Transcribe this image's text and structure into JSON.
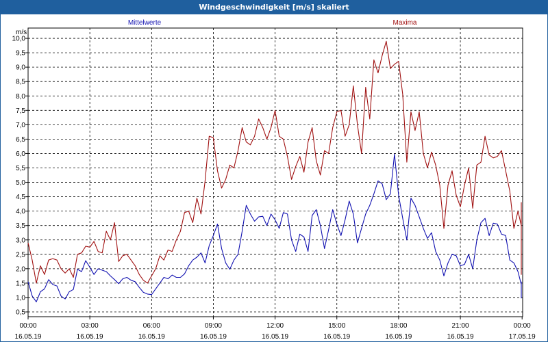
{
  "window": {
    "title": "Windgeschwindigkeit [m/s] skaliert"
  },
  "chart_data": {
    "type": "line",
    "unit_label": "m/s",
    "ylim": [
      0.3,
      10.3
    ],
    "y_ticks": [
      "0,5",
      "1,0",
      "1,5",
      "2,0",
      "2,5",
      "3,0",
      "3,5",
      "4,0",
      "4,5",
      "5,0",
      "5,5",
      "6,0",
      "6,5",
      "7,0",
      "7,5",
      "8,0",
      "8,5",
      "9,0",
      "9,5",
      "10,0"
    ],
    "y_tick_values": [
      0.5,
      1.0,
      1.5,
      2.0,
      2.5,
      3.0,
      3.5,
      4.0,
      4.5,
      5.0,
      5.5,
      6.0,
      6.5,
      7.0,
      7.5,
      8.0,
      8.5,
      9.0,
      9.5,
      10.0
    ],
    "x_ticks": [
      {
        "time": "00:00",
        "date": "16.05.19",
        "hour": 0
      },
      {
        "time": "03:00",
        "date": "16.05.19",
        "hour": 3
      },
      {
        "time": "06:00",
        "date": "16.05.19",
        "hour": 6
      },
      {
        "time": "09:00",
        "date": "16.05.19",
        "hour": 9
      },
      {
        "time": "12:00",
        "date": "16.05.19",
        "hour": 12
      },
      {
        "time": "15:00",
        "date": "16.05.19",
        "hour": 15
      },
      {
        "time": "18:00",
        "date": "16.05.19",
        "hour": 18
      },
      {
        "time": "21:00",
        "date": "16.05.19",
        "hour": 21
      },
      {
        "time": "00:00",
        "date": "17.05.19",
        "hour": 24
      }
    ],
    "xlim": [
      0,
      24
    ],
    "grid": true,
    "series": [
      {
        "name": "Mittelwerte",
        "color": "#1010b0",
        "points": [
          [
            0,
            1.55
          ],
          [
            0.2,
            1.05
          ],
          [
            0.4,
            0.85
          ],
          [
            0.6,
            1.2
          ],
          [
            0.8,
            1.3
          ],
          [
            1.0,
            1.62
          ],
          [
            1.2,
            1.45
          ],
          [
            1.4,
            1.4
          ],
          [
            1.6,
            1.05
          ],
          [
            1.8,
            0.95
          ],
          [
            2.0,
            1.2
          ],
          [
            2.2,
            1.28
          ],
          [
            2.4,
            1.98
          ],
          [
            2.6,
            1.9
          ],
          [
            2.8,
            2.28
          ],
          [
            3.0,
            2.05
          ],
          [
            3.2,
            1.8
          ],
          [
            3.4,
            2.0
          ],
          [
            3.6,
            1.95
          ],
          [
            3.8,
            1.9
          ],
          [
            4.0,
            1.75
          ],
          [
            4.2,
            1.62
          ],
          [
            4.4,
            1.48
          ],
          [
            4.6,
            1.65
          ],
          [
            4.8,
            1.7
          ],
          [
            5.0,
            1.6
          ],
          [
            5.2,
            1.55
          ],
          [
            5.4,
            1.35
          ],
          [
            5.6,
            1.18
          ],
          [
            5.8,
            1.12
          ],
          [
            6.0,
            1.1
          ],
          [
            6.2,
            1.3
          ],
          [
            6.4,
            1.5
          ],
          [
            6.6,
            1.7
          ],
          [
            6.8,
            1.65
          ],
          [
            7.0,
            1.78
          ],
          [
            7.2,
            1.7
          ],
          [
            7.4,
            1.7
          ],
          [
            7.6,
            1.82
          ],
          [
            7.8,
            2.1
          ],
          [
            8.0,
            2.3
          ],
          [
            8.2,
            2.4
          ],
          [
            8.4,
            2.55
          ],
          [
            8.6,
            2.2
          ],
          [
            8.8,
            2.8
          ],
          [
            9.0,
            3.15
          ],
          [
            9.2,
            3.55
          ],
          [
            9.4,
            2.7
          ],
          [
            9.6,
            2.2
          ],
          [
            9.8,
            1.98
          ],
          [
            10.0,
            2.3
          ],
          [
            10.2,
            2.5
          ],
          [
            10.4,
            3.3
          ],
          [
            10.6,
            4.2
          ],
          [
            10.8,
            3.9
          ],
          [
            11.0,
            3.65
          ],
          [
            11.2,
            3.8
          ],
          [
            11.4,
            3.82
          ],
          [
            11.6,
            3.5
          ],
          [
            11.8,
            3.9
          ],
          [
            12.0,
            3.7
          ],
          [
            12.2,
            3.4
          ],
          [
            12.4,
            3.95
          ],
          [
            12.6,
            3.9
          ],
          [
            12.8,
            3.0
          ],
          [
            13.0,
            2.6
          ],
          [
            13.2,
            3.2
          ],
          [
            13.4,
            3.1
          ],
          [
            13.6,
            2.6
          ],
          [
            13.8,
            3.85
          ],
          [
            14.0,
            4.05
          ],
          [
            14.2,
            3.5
          ],
          [
            14.4,
            2.7
          ],
          [
            14.6,
            3.35
          ],
          [
            14.8,
            4.05
          ],
          [
            15.0,
            3.55
          ],
          [
            15.2,
            3.15
          ],
          [
            15.4,
            3.7
          ],
          [
            15.6,
            4.35
          ],
          [
            15.8,
            3.9
          ],
          [
            16.0,
            2.9
          ],
          [
            16.2,
            3.4
          ],
          [
            16.4,
            3.9
          ],
          [
            16.6,
            4.2
          ],
          [
            16.8,
            4.6
          ],
          [
            17.0,
            5.05
          ],
          [
            17.2,
            4.95
          ],
          [
            17.4,
            4.4
          ],
          [
            17.6,
            4.6
          ],
          [
            17.8,
            5.98
          ],
          [
            18.0,
            4.55
          ],
          [
            18.2,
            3.75
          ],
          [
            18.4,
            3.0
          ],
          [
            18.6,
            4.45
          ],
          [
            18.8,
            4.2
          ],
          [
            19.0,
            3.8
          ],
          [
            19.2,
            3.4
          ],
          [
            19.4,
            3.05
          ],
          [
            19.6,
            3.25
          ],
          [
            19.8,
            2.6
          ],
          [
            20.0,
            2.3
          ],
          [
            20.2,
            1.75
          ],
          [
            20.4,
            2.2
          ],
          [
            20.6,
            2.5
          ],
          [
            20.8,
            2.45
          ],
          [
            21.0,
            2.1
          ],
          [
            21.2,
            2.15
          ],
          [
            21.4,
            2.5
          ],
          [
            21.6,
            2.0
          ],
          [
            21.8,
            3.0
          ],
          [
            22.0,
            3.6
          ],
          [
            22.2,
            3.75
          ],
          [
            22.4,
            3.15
          ],
          [
            22.6,
            3.58
          ],
          [
            22.8,
            3.55
          ],
          [
            23.0,
            3.2
          ],
          [
            23.2,
            3.15
          ],
          [
            23.4,
            2.3
          ],
          [
            23.6,
            2.2
          ],
          [
            23.8,
            1.9
          ],
          [
            24.0,
            1.45
          ],
          [
            24.2,
            1.5
          ],
          [
            24.4,
            0.98
          ],
          [
            24.6,
            1.4
          ],
          [
            24.8,
            1.5
          ],
          [
            25.0,
            1.55
          ]
        ]
      },
      {
        "name": "Maxima",
        "color": "#a01010",
        "points": [
          [
            0,
            2.9
          ],
          [
            0.2,
            2.3
          ],
          [
            0.4,
            1.5
          ],
          [
            0.6,
            2.1
          ],
          [
            0.8,
            1.8
          ],
          [
            1.0,
            2.3
          ],
          [
            1.2,
            2.35
          ],
          [
            1.4,
            2.3
          ],
          [
            1.6,
            2.0
          ],
          [
            1.8,
            1.85
          ],
          [
            2.0,
            2.0
          ],
          [
            2.2,
            1.7
          ],
          [
            2.4,
            2.5
          ],
          [
            2.6,
            2.55
          ],
          [
            2.8,
            2.78
          ],
          [
            3.0,
            2.75
          ],
          [
            3.2,
            2.95
          ],
          [
            3.4,
            2.6
          ],
          [
            3.6,
            2.55
          ],
          [
            3.8,
            3.3
          ],
          [
            4.0,
            3.0
          ],
          [
            4.2,
            3.6
          ],
          [
            4.4,
            2.25
          ],
          [
            4.6,
            2.45
          ],
          [
            4.8,
            2.5
          ],
          [
            5.0,
            2.3
          ],
          [
            5.2,
            2.1
          ],
          [
            5.4,
            1.8
          ],
          [
            5.6,
            1.6
          ],
          [
            5.8,
            1.5
          ],
          [
            6.0,
            1.75
          ],
          [
            6.2,
            2.0
          ],
          [
            6.4,
            2.45
          ],
          [
            6.6,
            2.3
          ],
          [
            6.8,
            2.65
          ],
          [
            7.0,
            2.6
          ],
          [
            7.2,
            3.0
          ],
          [
            7.4,
            3.3
          ],
          [
            7.6,
            3.95
          ],
          [
            7.8,
            4.0
          ],
          [
            8.0,
            3.6
          ],
          [
            8.2,
            4.45
          ],
          [
            8.4,
            3.9
          ],
          [
            8.6,
            5.05
          ],
          [
            8.8,
            6.6
          ],
          [
            9.0,
            6.55
          ],
          [
            9.2,
            5.4
          ],
          [
            9.4,
            4.8
          ],
          [
            9.6,
            5.1
          ],
          [
            9.8,
            5.6
          ],
          [
            10.0,
            5.5
          ],
          [
            10.2,
            6.1
          ],
          [
            10.4,
            6.9
          ],
          [
            10.6,
            6.4
          ],
          [
            10.8,
            6.3
          ],
          [
            11.0,
            6.6
          ],
          [
            11.2,
            7.2
          ],
          [
            11.4,
            6.9
          ],
          [
            11.6,
            6.5
          ],
          [
            11.8,
            6.9
          ],
          [
            12.0,
            7.5
          ],
          [
            12.2,
            6.6
          ],
          [
            12.4,
            6.5
          ],
          [
            12.6,
            5.9
          ],
          [
            12.8,
            5.1
          ],
          [
            13.0,
            5.55
          ],
          [
            13.2,
            5.9
          ],
          [
            13.4,
            5.35
          ],
          [
            13.6,
            6.4
          ],
          [
            13.8,
            6.9
          ],
          [
            14.0,
            5.75
          ],
          [
            14.2,
            5.25
          ],
          [
            14.4,
            6.1
          ],
          [
            14.6,
            6.0
          ],
          [
            14.8,
            6.9
          ],
          [
            15.0,
            7.45
          ],
          [
            15.2,
            7.5
          ],
          [
            15.4,
            6.6
          ],
          [
            15.6,
            7.0
          ],
          [
            15.8,
            8.35
          ],
          [
            16.0,
            7.0
          ],
          [
            16.2,
            6.0
          ],
          [
            16.4,
            8.3
          ],
          [
            16.6,
            7.2
          ],
          [
            16.8,
            9.25
          ],
          [
            17.0,
            8.8
          ],
          [
            17.2,
            9.4
          ],
          [
            17.4,
            9.9
          ],
          [
            17.6,
            8.95
          ],
          [
            17.8,
            9.1
          ],
          [
            18.0,
            9.2
          ],
          [
            18.2,
            8.05
          ],
          [
            18.4,
            5.7
          ],
          [
            18.6,
            7.45
          ],
          [
            18.8,
            6.8
          ],
          [
            19.0,
            7.45
          ],
          [
            19.2,
            6.0
          ],
          [
            19.4,
            5.5
          ],
          [
            19.6,
            6.05
          ],
          [
            19.8,
            5.6
          ],
          [
            20.0,
            4.9
          ],
          [
            20.2,
            3.4
          ],
          [
            20.4,
            4.9
          ],
          [
            20.6,
            5.4
          ],
          [
            20.8,
            4.55
          ],
          [
            21.0,
            4.15
          ],
          [
            21.2,
            4.9
          ],
          [
            21.4,
            5.5
          ],
          [
            21.6,
            4.1
          ],
          [
            21.8,
            5.6
          ],
          [
            22.0,
            5.7
          ],
          [
            22.2,
            6.6
          ],
          [
            22.4,
            5.95
          ],
          [
            22.6,
            5.85
          ],
          [
            22.8,
            5.9
          ],
          [
            23.0,
            6.1
          ],
          [
            23.2,
            5.4
          ],
          [
            23.4,
            4.7
          ],
          [
            23.6,
            3.4
          ],
          [
            23.8,
            4.0
          ],
          [
            24.0,
            3.5
          ],
          [
            24.2,
            4.3
          ],
          [
            24.4,
            3.0
          ],
          [
            24.6,
            2.45
          ],
          [
            24.8,
            1.8
          ],
          [
            25.0,
            2.55
          ],
          [
            25.2,
            2.45
          ]
        ]
      }
    ]
  }
}
